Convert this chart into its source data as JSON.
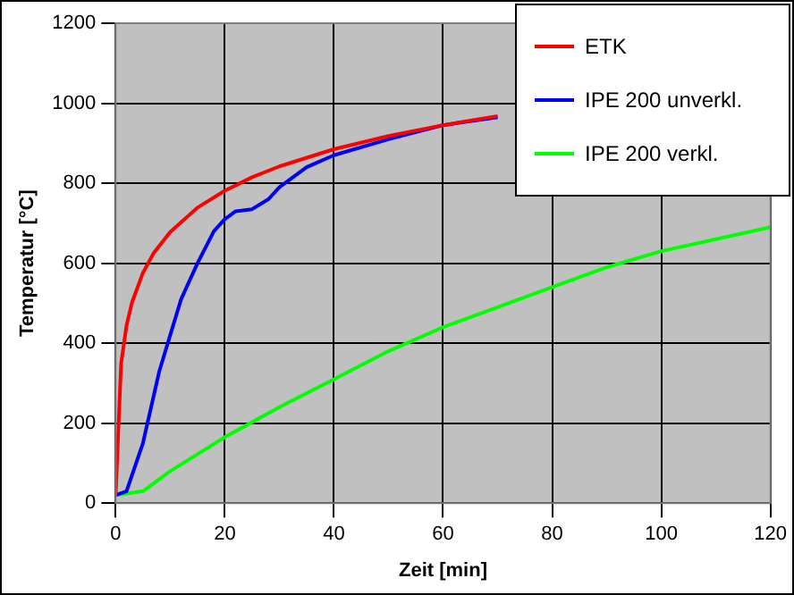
{
  "chart_data": {
    "type": "line",
    "xlabel": "Zeit [min]",
    "ylabel": "Temperatur [°C]",
    "xlim": [
      0,
      120
    ],
    "xticks": [
      0,
      20,
      40,
      60,
      80,
      100,
      120
    ],
    "ylim": [
      0,
      1200
    ],
    "yticks": [
      0,
      200,
      400,
      600,
      800,
      1000,
      1200
    ],
    "grid": true,
    "legend": "top right",
    "marker": "none",
    "line_style": "solid",
    "series": [
      {
        "name": "ETK",
        "color": "#ff0000",
        "x": [
          0,
          1,
          2,
          3,
          5,
          7,
          10,
          15,
          20,
          25,
          30,
          40,
          50,
          60,
          70
        ],
        "values": [
          20,
          349,
          445,
          502,
          576,
          626,
          678,
          739,
          781,
          815,
          842,
          885,
          918,
          945,
          968
        ]
      },
      {
        "name": "IPE 200 unverkl.",
        "color": "#0000ff",
        "x": [
          0,
          2,
          5,
          8,
          10,
          12,
          15,
          18,
          20,
          22,
          25,
          28,
          30,
          35,
          40,
          50,
          60,
          70
        ],
        "values": [
          20,
          30,
          150,
          330,
          420,
          510,
          600,
          680,
          710,
          730,
          735,
          760,
          790,
          840,
          870,
          910,
          945,
          965
        ]
      },
      {
        "name": "IPE 200 verkl.",
        "color": "#00ff00",
        "x": [
          0,
          5,
          10,
          20,
          30,
          40,
          50,
          60,
          70,
          80,
          90,
          100,
          110,
          120
        ],
        "values": [
          20,
          30,
          80,
          165,
          240,
          310,
          380,
          440,
          490,
          540,
          590,
          630,
          660,
          690
        ]
      }
    ]
  }
}
